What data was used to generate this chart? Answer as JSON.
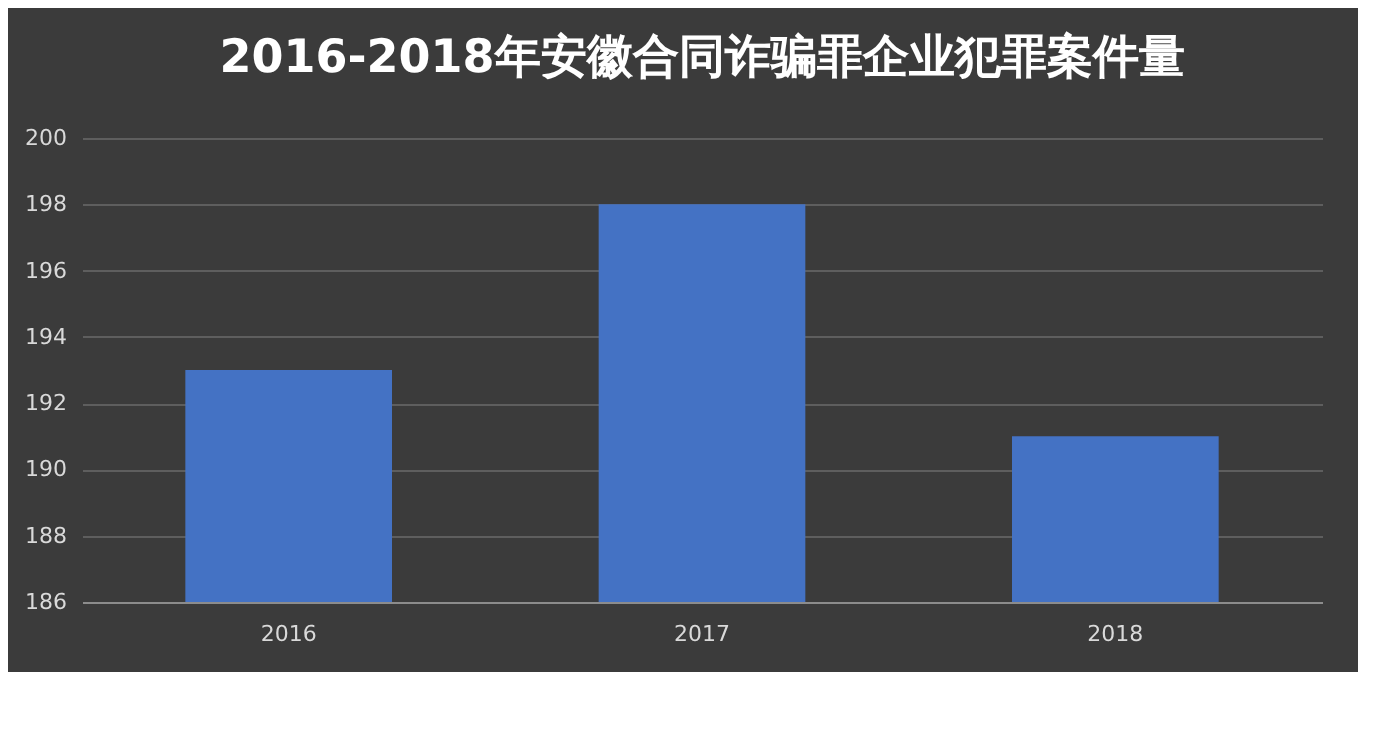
{
  "chart_data": {
    "type": "bar",
    "title": "2016-2018年安徽合同诈骗罪企业犯罪案件量",
    "categories": [
      "2016",
      "2017",
      "2018"
    ],
    "values": [
      193,
      198,
      191
    ],
    "color": "#4472c4",
    "ylim": [
      186,
      200
    ],
    "yticks": [
      186,
      188,
      190,
      192,
      194,
      196,
      198,
      200
    ],
    "grid": true
  }
}
